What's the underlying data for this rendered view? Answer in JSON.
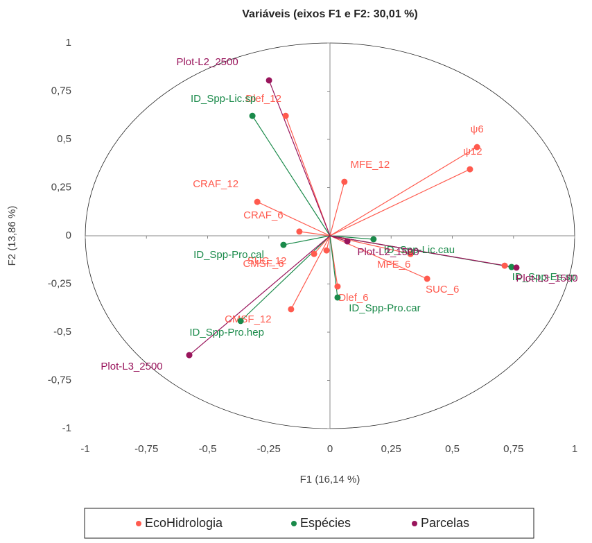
{
  "chart_data": {
    "type": "scatter",
    "title": "Variáveis (eixos F1 e F2: 30,01 %)",
    "x_label": "F1 (16,14 %)",
    "y_label": "F2 (13,86 %)",
    "xlim": [
      -1,
      1
    ],
    "ylim": [
      -1,
      1
    ],
    "xticks": [
      -1,
      {
        "value": -0.75,
        "label": "-0,75"
      },
      {
        "value": -0.5,
        "label": "-0,5"
      },
      {
        "value": -0.25,
        "label": "-0,25"
      },
      0,
      {
        "value": 0.25,
        "label": "0,25"
      },
      {
        "value": 0.5,
        "label": "0,5"
      },
      {
        "value": 0.75,
        "label": "0,75"
      },
      1
    ],
    "yticks": [
      -1,
      {
        "value": -0.75,
        "label": "-0,75"
      },
      {
        "value": -0.5,
        "label": "-0,5"
      },
      {
        "value": -0.25,
        "label": "-0,25"
      },
      0,
      {
        "value": 0.25,
        "label": "0,25"
      },
      {
        "value": 0.5,
        "label": "0,5"
      },
      {
        "value": 0.75,
        "label": "0,75"
      },
      1
    ],
    "series": [
      {
        "name": "EcoHidrologia",
        "color": "#ff5a4e",
        "labels": [
          "Dlef_12",
          "ψ6",
          "ψ12",
          "MFE_12",
          "CRAF_12",
          "CRAF_6",
          "CMSF_6",
          "SUC_12",
          "CMSF_12",
          "Dlef_6",
          "MFE_6",
          "SUC_6",
          null
        ],
        "x": [
          -0.181,
          0.601,
          0.572,
          0.059,
          -0.297,
          -0.125,
          -0.065,
          -0.014,
          -0.159,
          0.031,
          0.329,
          0.397,
          0.714
        ],
        "y": [
          0.622,
          0.46,
          0.345,
          0.28,
          0.176,
          0.022,
          -0.094,
          -0.076,
          -0.381,
          -0.263,
          -0.094,
          -0.223,
          -0.155
        ]
      },
      {
        "name": "Espécies",
        "color": "#1a8a4a",
        "labels": [
          "ID_Spp-Lic.sp",
          "ID_Spp-Pro.cal",
          "ID_Spp-Lic.cau",
          "ID_Spp-Pro.car",
          "ID_Spp-Pro.hep",
          "ID_Spp-Es.sp"
        ],
        "x": [
          -0.317,
          -0.19,
          0.178,
          0.031,
          -0.365,
          0.742
        ],
        "y": [
          0.622,
          -0.047,
          -0.018,
          -0.32,
          -0.442,
          -0.162
        ]
      },
      {
        "name": "Parcelas",
        "color": "#99155c",
        "labels": [
          "Plot-L2_2500",
          "Plot-L2_1500",
          "Plot-L3_2500",
          "Plot-L3_1500"
        ],
        "x": [
          -0.249,
          0.071,
          -0.575,
          0.762
        ],
        "y": [
          0.806,
          -0.029,
          -0.619,
          -0.165
        ]
      }
    ]
  }
}
